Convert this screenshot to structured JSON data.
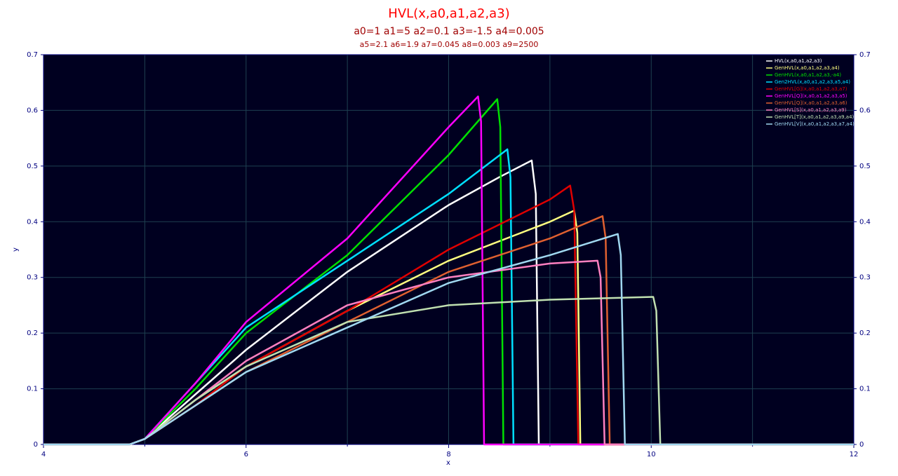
{
  "chart_data": {
    "type": "line",
    "title": "HVL(x,a0,a1,a2,a3)",
    "subtitles": [
      "a0=1  a1=5  a2=0.1  a3=-1.5  a4=0.005",
      "a5=2.1  a6=1.9  a7=0.045  a8=0.003  a9=2500"
    ],
    "x_label": "x",
    "y_label": "y",
    "xlim": [
      4,
      12
    ],
    "xticks": [
      4,
      6,
      8,
      10,
      12
    ],
    "x_minor_ticks": [
      5,
      7,
      9,
      11
    ],
    "ylim": [
      0,
      0.7
    ],
    "yticks": [
      0,
      0.1,
      0.2,
      0.3,
      0.4,
      0.5,
      0.6,
      0.7
    ],
    "grid": true,
    "legend": "upper right",
    "background": "#000020",
    "series": [
      {
        "name": "HVL(x,a0,a1,a2,a3)",
        "color": "#ffffff",
        "x": [
          4,
          4.85,
          5,
          5.5,
          6,
          6.5,
          7,
          7.5,
          8,
          8.5,
          8.82,
          8.86,
          8.89,
          12
        ],
        "values": [
          0,
          0,
          0.01,
          0.09,
          0.17,
          0.24,
          0.31,
          0.37,
          0.43,
          0.48,
          0.51,
          0.45,
          0,
          0
        ]
      },
      {
        "name": "GenHVL(x,a0,a1,a2,a3,a4)",
        "color": "#ffff80",
        "x": [
          4,
          4.85,
          5,
          5.5,
          6,
          7,
          8,
          9,
          9.24,
          9.27,
          9.3,
          12
        ],
        "values": [
          0,
          0,
          0.01,
          0.08,
          0.14,
          0.24,
          0.33,
          0.4,
          0.42,
          0.38,
          0,
          0
        ]
      },
      {
        "name": "GenHVL(x,a0,a1,a2,a3,-a4)",
        "color": "#00e000",
        "x": [
          4,
          4.85,
          5,
          5.5,
          6,
          7,
          8,
          8.48,
          8.51,
          8.54,
          12
        ],
        "values": [
          0,
          0,
          0.01,
          0.1,
          0.2,
          0.34,
          0.52,
          0.62,
          0.57,
          0,
          0
        ]
      },
      {
        "name": "Gen2HVL(x,a0,a1,a2,a3,a5,a4)",
        "color": "#00e0ff",
        "x": [
          4,
          4.85,
          5,
          5.5,
          6,
          7,
          8,
          8.58,
          8.61,
          8.64,
          12
        ],
        "values": [
          0,
          0,
          0.01,
          0.11,
          0.21,
          0.33,
          0.45,
          0.53,
          0.48,
          0,
          0
        ]
      },
      {
        "name": "GenHVL[G](x,a0,a1,a2,a3,a7)",
        "color": "#e00000",
        "x": [
          4,
          4.85,
          5,
          5.5,
          6,
          7,
          8,
          9,
          9.2,
          9.24,
          9.28,
          12
        ],
        "values": [
          0,
          0,
          0.01,
          0.07,
          0.14,
          0.24,
          0.35,
          0.44,
          0.465,
          0.42,
          0,
          0
        ]
      },
      {
        "name": "GenHVL[Q](x,a0,a1,a2,a3,a5)",
        "color": "#ff00ff",
        "x": [
          4,
          4.85,
          5,
          5.5,
          6,
          7,
          8,
          8.29,
          8.32,
          8.35,
          12
        ],
        "values": [
          0,
          0,
          0.01,
          0.11,
          0.22,
          0.37,
          0.57,
          0.625,
          0.58,
          0,
          0
        ]
      },
      {
        "name": "GenHVL[Q](x,a0,a1,a2,a3,a6)",
        "color": "#e06030",
        "x": [
          4,
          4.85,
          5,
          5.5,
          6,
          7,
          8,
          9,
          9.52,
          9.55,
          9.59,
          12
        ],
        "values": [
          0,
          0,
          0.01,
          0.07,
          0.13,
          0.22,
          0.31,
          0.37,
          0.41,
          0.37,
          0,
          0
        ]
      },
      {
        "name": "GenHVL[S](x,a0,a1,a2,a3,a9)",
        "color": "#ff80c0",
        "x": [
          4,
          4.85,
          5,
          5.5,
          6,
          7,
          8,
          9,
          9.47,
          9.5,
          9.54,
          12
        ],
        "values": [
          0,
          0,
          0.01,
          0.08,
          0.15,
          0.25,
          0.3,
          0.325,
          0.33,
          0.3,
          0,
          0
        ]
      },
      {
        "name": "GenHVL[T](x,a0,a1,a2,a3,a9,a4)",
        "color": "#c0e0b0",
        "x": [
          4,
          4.85,
          5,
          5.5,
          6,
          7,
          8,
          9,
          10.02,
          10.05,
          10.09,
          12
        ],
        "values": [
          0,
          0,
          0.01,
          0.08,
          0.14,
          0.22,
          0.25,
          0.26,
          0.265,
          0.24,
          0,
          0
        ]
      },
      {
        "name": "GenHVL[V](x,a0,a1,a2,a3,a7,a4)",
        "color": "#a0d8f0",
        "x": [
          4,
          4.85,
          5,
          5.5,
          6,
          7,
          8,
          9,
          9.67,
          9.7,
          9.74,
          12
        ],
        "values": [
          0,
          0,
          0.01,
          0.07,
          0.13,
          0.21,
          0.29,
          0.34,
          0.378,
          0.34,
          0,
          0
        ]
      }
    ]
  }
}
